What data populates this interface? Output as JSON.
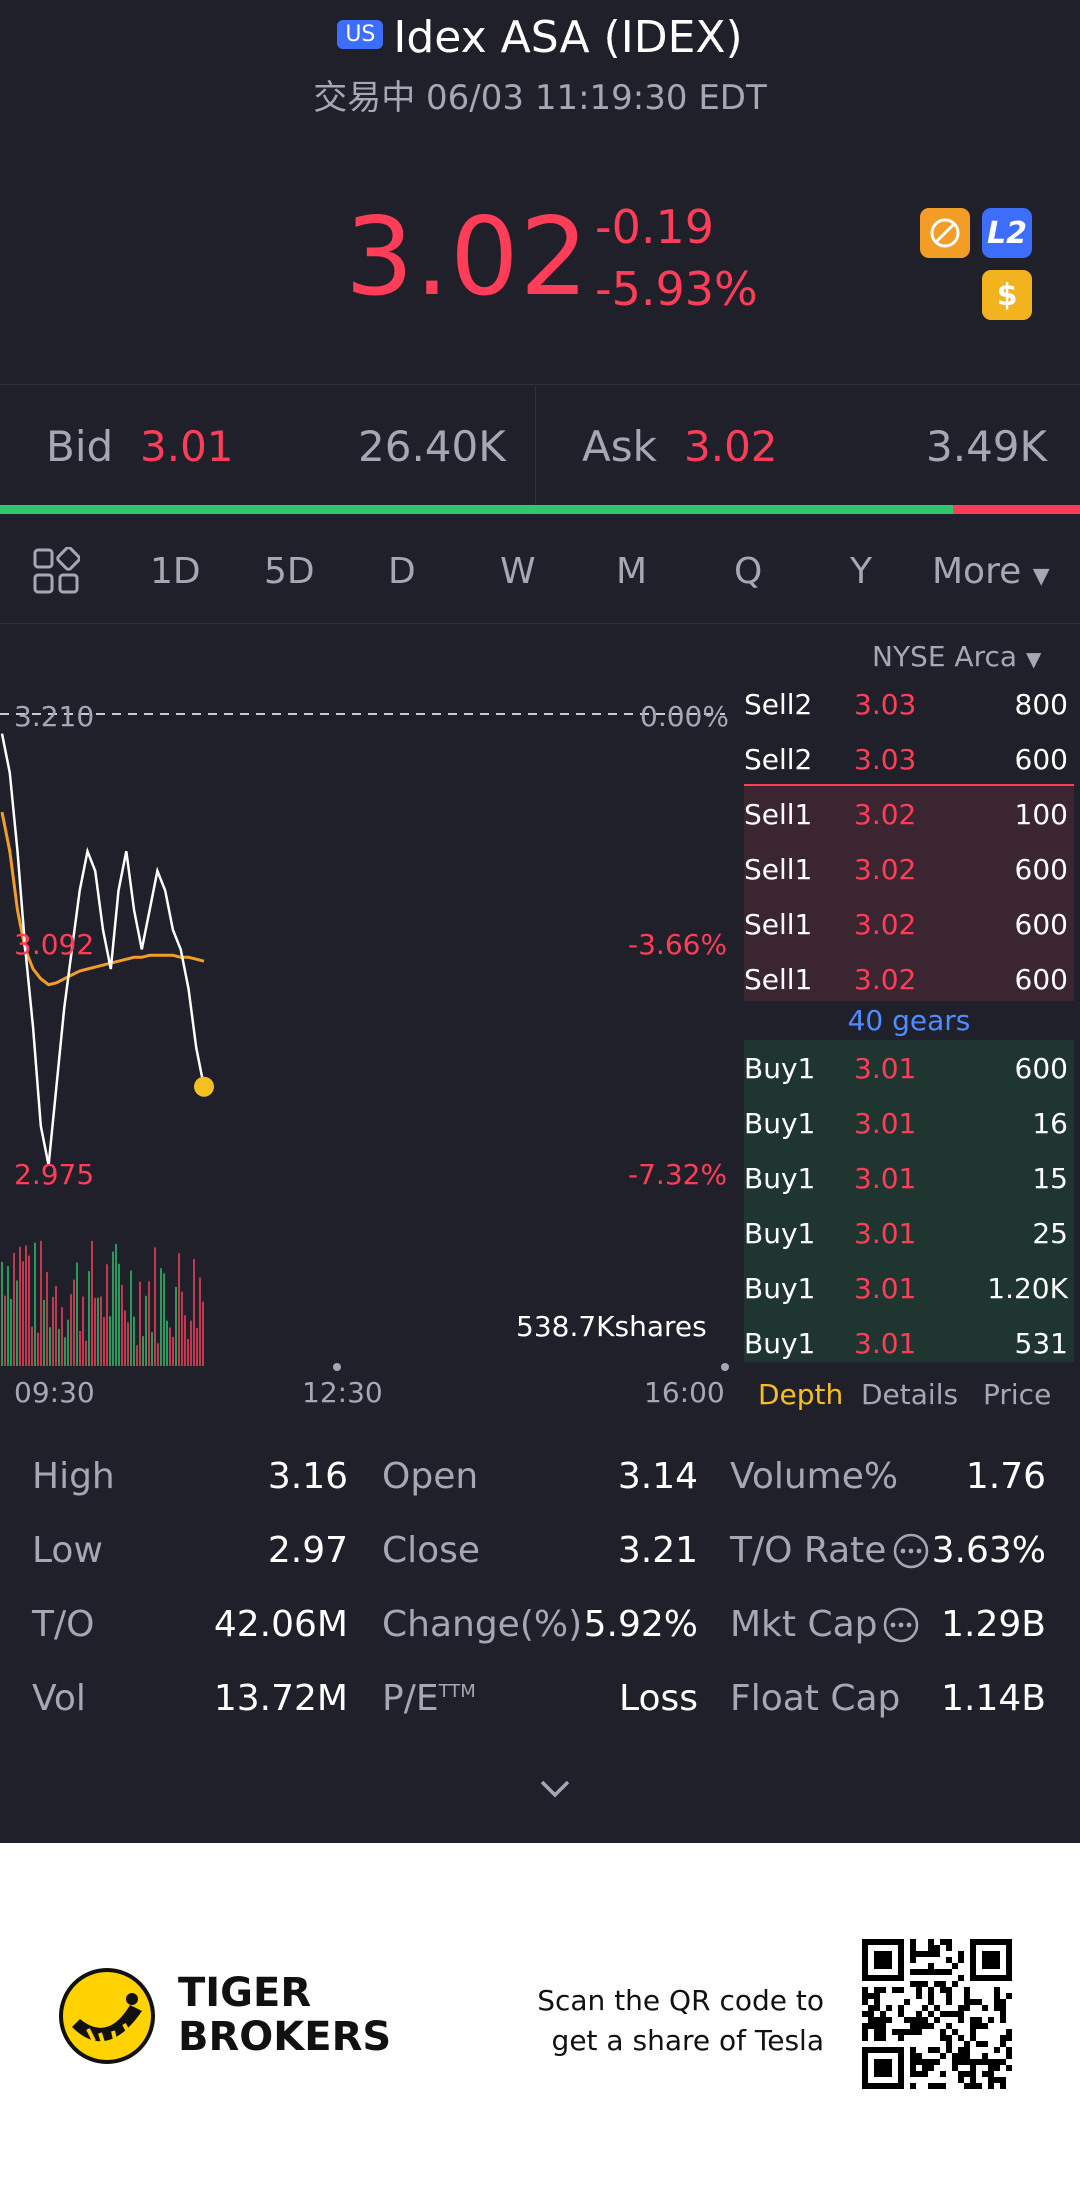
{
  "header": {
    "market_badge": "US",
    "title": "Idex ASA (IDEX)",
    "status": "交易中 06/03 11:19:30 EDT"
  },
  "quote": {
    "price": "3.02",
    "change": "-0.19",
    "change_pct": "-5.93%"
  },
  "badges": {
    "l2": "L2",
    "dollar": "$"
  },
  "bidask": {
    "bid_label": "Bid",
    "bid_price": "3.01",
    "bid_size": "26.40K",
    "ask_label": "Ask",
    "ask_price": "3.02",
    "ask_size": "3.49K",
    "bid_ratio": 0.882
  },
  "tabs": [
    "1D",
    "5D",
    "D",
    "W",
    "M",
    "Q",
    "Y",
    "More"
  ],
  "active_tab": "1D",
  "chart": {
    "prev_close_label": "3.210",
    "prev_close_pct": "0.00%",
    "mid_label": "3.092",
    "mid_pct": "-3.66%",
    "low_label": "2.975",
    "low_pct": "-7.32%",
    "volume_label": "538.7Kshares",
    "time_labels": [
      "09:30",
      "12:30",
      "16:00"
    ]
  },
  "chart_data": {
    "type": "line",
    "series": [
      {
        "values": [
          3.2,
          3.18,
          3.14,
          3.09,
          3.05,
          3.0,
          2.98,
          3.02,
          3.06,
          3.09,
          3.12,
          3.14,
          3.13,
          3.1,
          3.08,
          3.12,
          3.14,
          3.11,
          3.09,
          3.11,
          3.13,
          3.12,
          3.1,
          3.09,
          3.07,
          3.04,
          3.02
        ]
      },
      {
        "values": [
          3.16,
          3.14,
          3.11,
          3.09,
          3.08,
          3.075,
          3.072,
          3.073,
          3.075,
          3.077,
          3.079,
          3.08,
          3.081,
          3.082,
          3.083,
          3.084,
          3.085,
          3.086,
          3.086,
          3.087,
          3.087,
          3.087,
          3.087,
          3.086,
          3.086,
          3.085,
          3.084
        ]
      }
    ],
    "ylim": [
      2.975,
      3.21
    ]
  },
  "depth": {
    "exchange": "NYSE Arca",
    "sells": [
      {
        "label": "Sell2",
        "price": "3.03",
        "qty": "800"
      },
      {
        "label": "Sell2",
        "price": "3.03",
        "qty": "600"
      },
      {
        "label": "Sell1",
        "price": "3.02",
        "qty": "100"
      },
      {
        "label": "Sell1",
        "price": "3.02",
        "qty": "600"
      },
      {
        "label": "Sell1",
        "price": "3.02",
        "qty": "600"
      },
      {
        "label": "Sell1",
        "price": "3.02",
        "qty": "600"
      }
    ],
    "gears": "40 gears",
    "buys": [
      {
        "label": "Buy1",
        "price": "3.01",
        "qty": "600"
      },
      {
        "label": "Buy1",
        "price": "3.01",
        "qty": "16"
      },
      {
        "label": "Buy1",
        "price": "3.01",
        "qty": "15"
      },
      {
        "label": "Buy1",
        "price": "3.01",
        "qty": "25"
      },
      {
        "label": "Buy1",
        "price": "3.01",
        "qty": "1.20K"
      },
      {
        "label": "Buy1",
        "price": "3.01",
        "qty": "531"
      }
    ],
    "tabs": [
      "Depth",
      "Details",
      "Price"
    ]
  },
  "stats": [
    {
      "label": "High",
      "value": "3.16"
    },
    {
      "label": "Open",
      "value": "3.14"
    },
    {
      "label": "Volume%",
      "value": "1.76"
    },
    {
      "label": "Low",
      "value": "2.97"
    },
    {
      "label": "Close",
      "value": "3.21"
    },
    {
      "label": "T/O Rate",
      "value": "3.63%"
    },
    {
      "label": "T/O",
      "value": "42.06M"
    },
    {
      "label": "Change(%)",
      "value": "5.92%"
    },
    {
      "label": "Mkt Cap",
      "value": "1.29B"
    },
    {
      "label": "Vol",
      "value": "13.72M"
    },
    {
      "label": "P/E",
      "sup": "TTM",
      "value": "Loss"
    },
    {
      "label": "Float Cap",
      "value": "1.14B"
    }
  ],
  "footer": {
    "brand_line1": "TIGER",
    "brand_line2": "BROKERS",
    "qr_line1": "Scan the QR code to",
    "qr_line2": "get a share of Tesla"
  },
  "colors": {
    "background": "#1f2029",
    "red": "#ff3d58",
    "green": "#2fc76f",
    "active_tab": "#f3c01f",
    "gears": "#4f8cff"
  }
}
